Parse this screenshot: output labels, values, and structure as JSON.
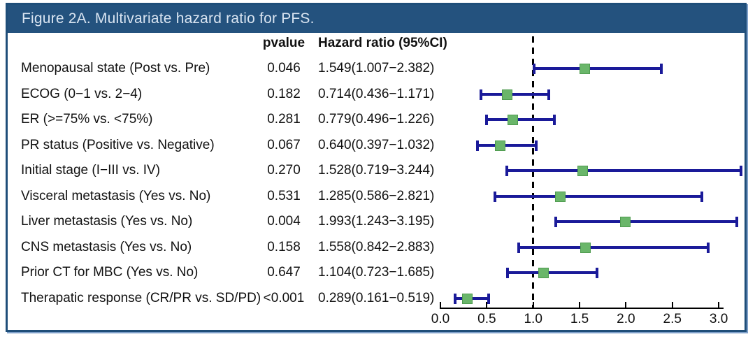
{
  "figure": {
    "title": "Figure 2A. Multivariate hazard ratio for PFS."
  },
  "table": {
    "col_pvalue": "pvalue",
    "col_hr": "Hazard ratio (95%CI)"
  },
  "chart_data": {
    "type": "forest",
    "title": "Figure 2A. Multivariate hazard ratio for PFS.",
    "xlabel": "",
    "xlim": [
      0,
      3.3
    ],
    "axis_range_ticks": [
      0,
      3
    ],
    "reference_line": 1.0,
    "x_ticks": [
      "0.0",
      "0.5",
      "1.0",
      "1.5",
      "2.0",
      "2.5",
      "3.0"
    ],
    "x_tick_values": [
      0,
      0.5,
      1,
      1.5,
      2,
      2.5,
      3
    ],
    "rows": [
      {
        "label": "Menopausal state (Post vs. Pre)",
        "pvalue": "0.046",
        "hr_text": "1.549(1.007−2.382)",
        "hr": 1.549,
        "lo": 1.007,
        "hi": 2.382
      },
      {
        "label": "ECOG (0−1 vs. 2−4)",
        "pvalue": "0.182",
        "hr_text": "0.714(0.436−1.171)",
        "hr": 0.714,
        "lo": 0.436,
        "hi": 1.171
      },
      {
        "label": "ER (>=75% vs. <75%)",
        "pvalue": "0.281",
        "hr_text": "0.779(0.496−1.226)",
        "hr": 0.779,
        "lo": 0.496,
        "hi": 1.226
      },
      {
        "label": "PR status (Positive vs. Negative)",
        "pvalue": "0.067",
        "hr_text": "0.640(0.397−1.032)",
        "hr": 0.64,
        "lo": 0.397,
        "hi": 1.032
      },
      {
        "label": "Initial stage (I−III vs. IV)",
        "pvalue": "0.270",
        "hr_text": "1.528(0.719−3.244)",
        "hr": 1.528,
        "lo": 0.719,
        "hi": 3.244
      },
      {
        "label": "Visceral metastasis (Yes vs. No)",
        "pvalue": "0.531",
        "hr_text": "1.285(0.586−2.821)",
        "hr": 1.285,
        "lo": 0.586,
        "hi": 2.821
      },
      {
        "label": "Liver metastasis (Yes vs. No)",
        "pvalue": "0.004",
        "hr_text": "1.993(1.243−3.195)",
        "hr": 1.993,
        "lo": 1.243,
        "hi": 3.195
      },
      {
        "label": "CNS metastasis (Yes vs. No)",
        "pvalue": "0.158",
        "hr_text": "1.558(0.842−2.883)",
        "hr": 1.558,
        "lo": 0.842,
        "hi": 2.883
      },
      {
        "label": "Prior CT for MBC (Yes vs. No)",
        "pvalue": "0.647",
        "hr_text": "1.104(0.723−1.685)",
        "hr": 1.104,
        "lo": 0.723,
        "hi": 1.685
      },
      {
        "label": "Therapatic response (CR/PR vs. SD/PD)",
        "pvalue": "<0.001",
        "hr_text": "0.289(0.161−0.519)",
        "hr": 0.289,
        "lo": 0.161,
        "hi": 0.519
      }
    ],
    "colors": {
      "ci_bar": "#1a1a99",
      "marker": "#6ab66a",
      "marker_border": "#4f9b4f",
      "reference_line": "#000000",
      "title_bg": "#24527e",
      "title_text": "#d9e4f1",
      "frame_border": "#1f4e79"
    }
  }
}
